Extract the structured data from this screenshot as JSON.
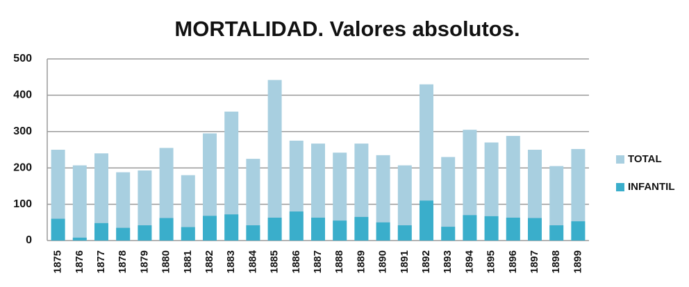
{
  "chart_data": {
    "type": "bar",
    "title": "MORTALIDAD. Valores absolutos.",
    "categories": [
      "1875",
      "1876",
      "1877",
      "1878",
      "1879",
      "1880",
      "1881",
      "1882",
      "1883",
      "1884",
      "1885",
      "1886",
      "1887",
      "1888",
      "1889",
      "1890",
      "1891",
      "1892",
      "1893",
      "1894",
      "1895",
      "1896",
      "1897",
      "1898",
      "1899"
    ],
    "series": [
      {
        "name": "TOTAL",
        "color": "#a8cfe0",
        "values": [
          250,
          207,
          240,
          188,
          193,
          255,
          180,
          295,
          355,
          225,
          442,
          275,
          267,
          242,
          267,
          235,
          207,
          430,
          230,
          305,
          270,
          288,
          250,
          205,
          252
        ]
      },
      {
        "name": "INFANTIL",
        "color": "#3aaecb",
        "values": [
          60,
          8,
          48,
          35,
          42,
          62,
          37,
          68,
          72,
          42,
          63,
          80,
          63,
          55,
          65,
          50,
          42,
          110,
          38,
          70,
          67,
          63,
          62,
          42,
          53
        ]
      }
    ],
    "overlap": true,
    "ylim": [
      0,
      500
    ],
    "yticks": [
      0,
      100,
      200,
      300,
      400,
      500
    ],
    "grid": true,
    "legend": "right"
  }
}
